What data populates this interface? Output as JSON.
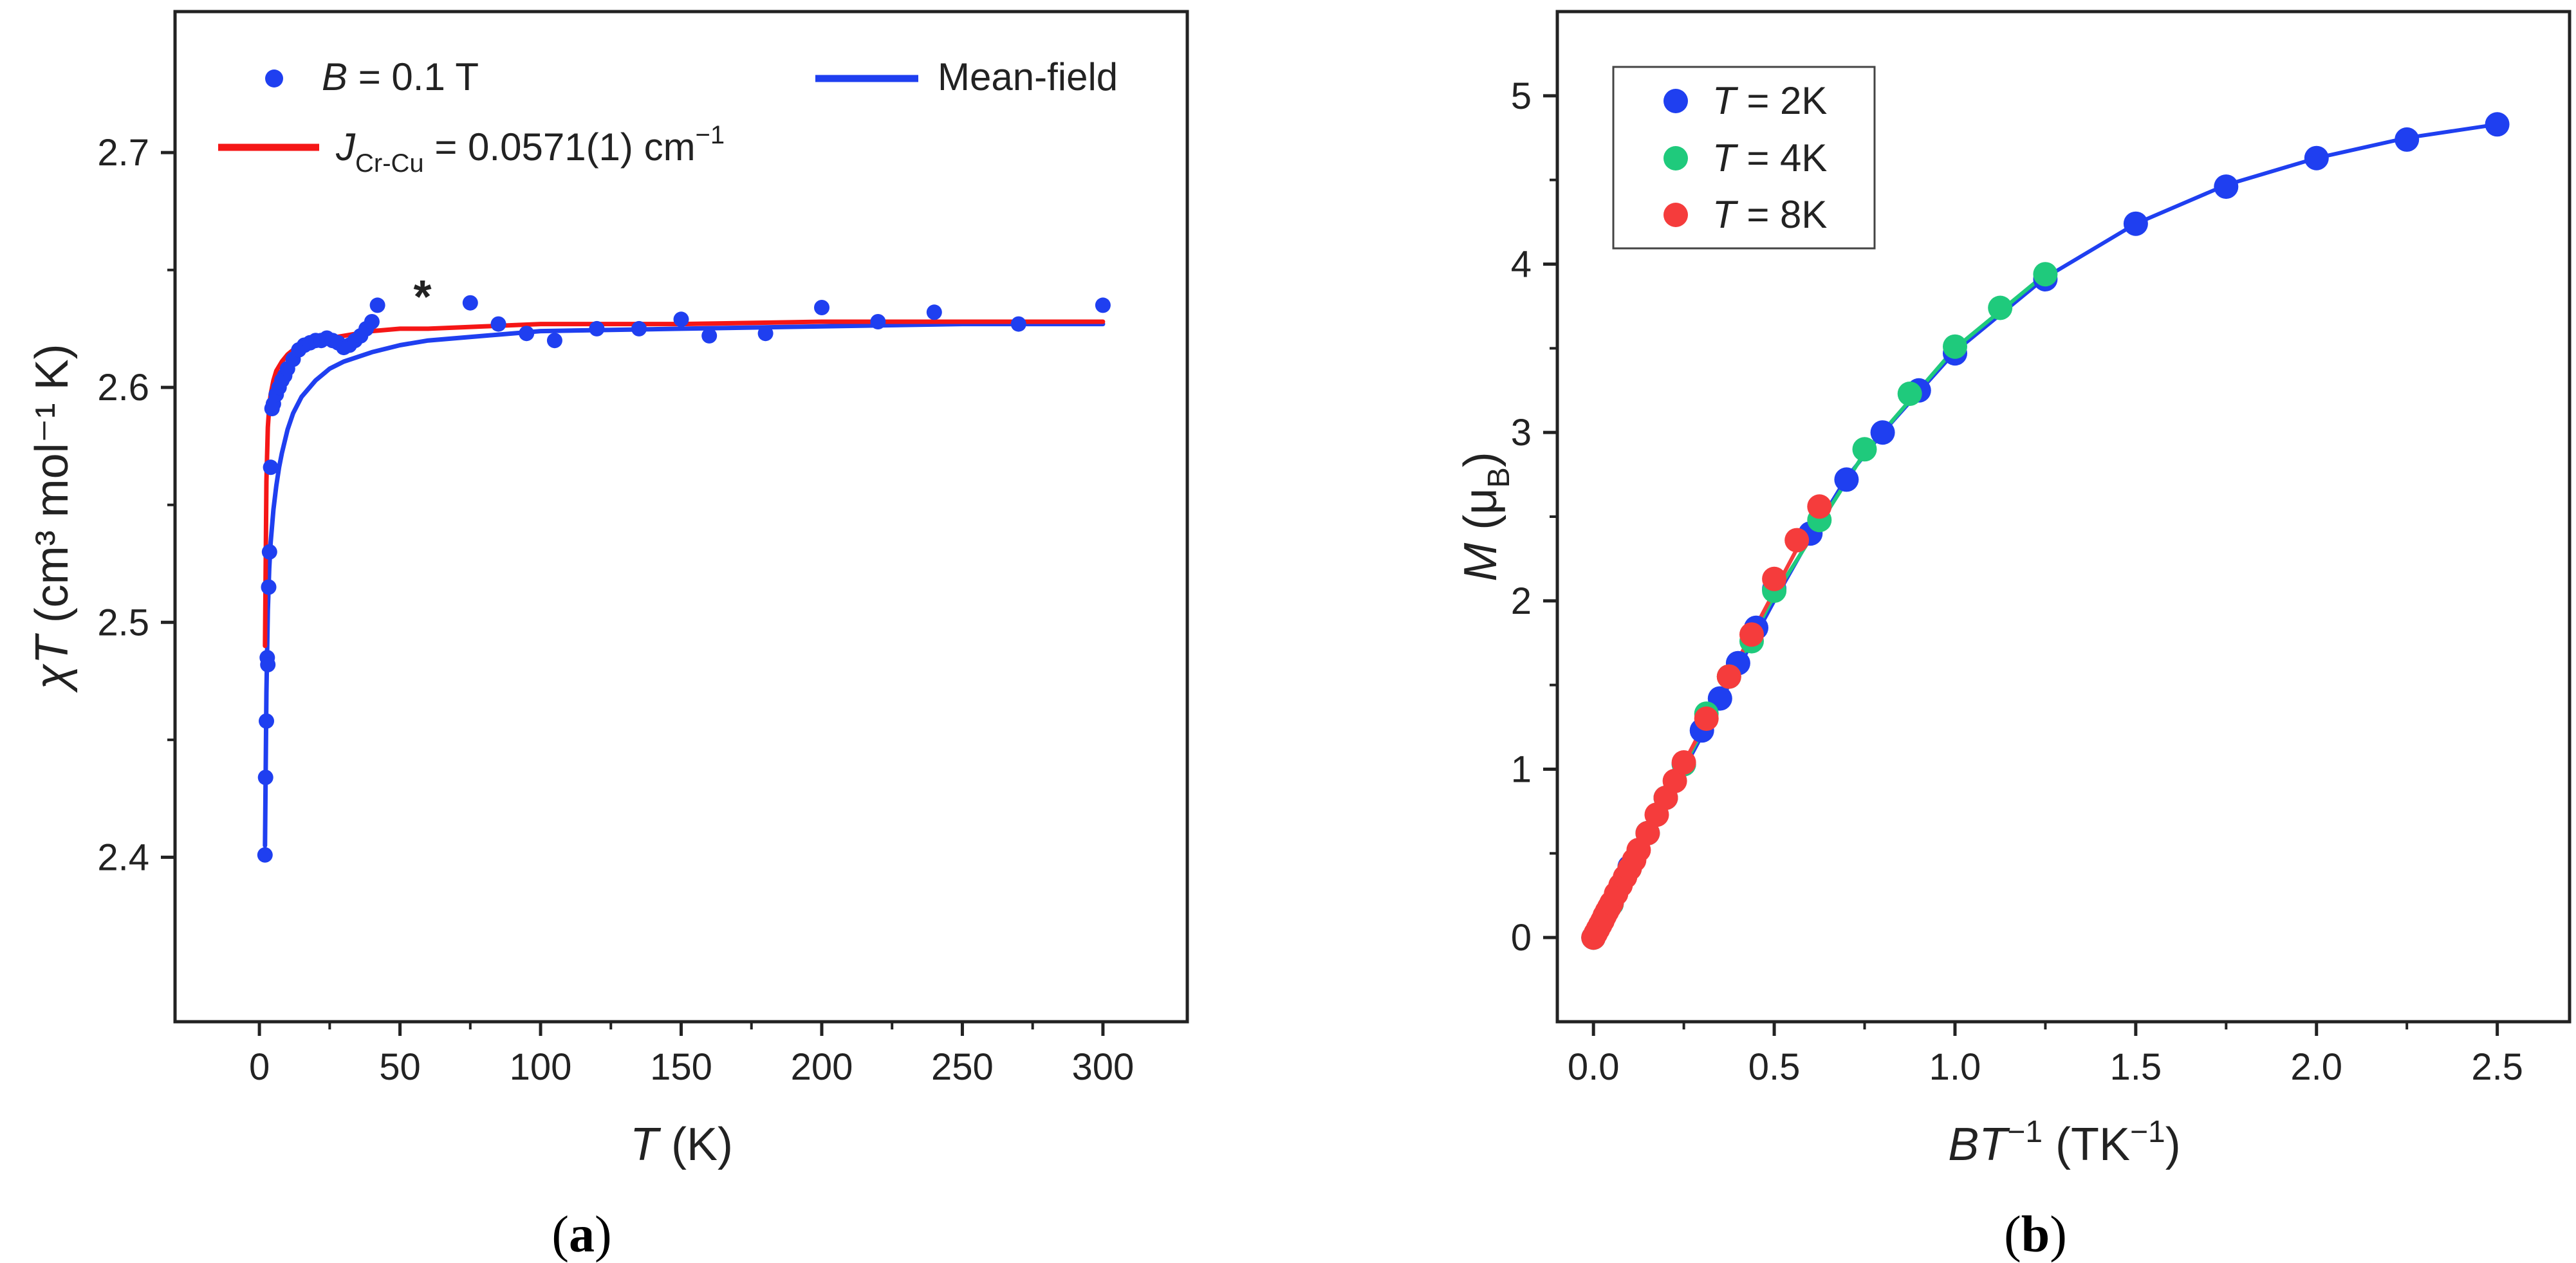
{
  "colors": {
    "blue": "#1f3ff0",
    "red": "#f51616",
    "green": "#1fca7c",
    "pointRed": "#f53c3c",
    "axis": "#222222"
  },
  "chart_data": [
    {
      "id": "a",
      "type": "scatter",
      "panel_label": "(a)",
      "panel_letter": "a",
      "xlabel": {
        "var": "T",
        "unit": " (K)"
      },
      "ylabel": {
        "pre": "χ",
        "var": "T",
        "unit": " (cm³ mol⁻¹ K)"
      },
      "xlim": [
        -30,
        330
      ],
      "ylim": [
        2.33,
        2.76
      ],
      "xticks": [
        0,
        50,
        100,
        150,
        200,
        250,
        300
      ],
      "yticks": [
        2.4,
        2.5,
        2.6,
        2.7
      ],
      "ytick_decimals": 1,
      "legend": {
        "points_label": {
          "var": "B",
          "rest": " = 0.1 T"
        },
        "mean_field_label": "Mean-field",
        "fit_label": {
          "var": "J",
          "sub": "Cr-Cu",
          "rest": " = 0.0571(1) cm",
          "sup": "−1"
        }
      },
      "annotation": {
        "text": "*",
        "x": 58,
        "y": 2.64
      },
      "series": [
        {
          "name": "B = 0.1 T",
          "kind": "points",
          "color_key": "blue",
          "x": [
            2,
            2.2,
            2.5,
            2.8,
            3,
            3.3,
            3.6,
            4,
            4.5,
            5,
            6,
            7,
            8,
            9,
            10,
            12,
            14,
            16,
            18,
            20,
            22,
            24,
            26,
            28,
            30,
            32,
            34,
            36,
            38,
            40,
            42,
            75,
            85,
            95,
            105,
            120,
            135,
            150,
            160,
            180,
            200,
            220,
            240,
            270,
            300
          ],
          "y": [
            2.401,
            2.434,
            2.458,
            2.485,
            2.482,
            2.515,
            2.53,
            2.566,
            2.591,
            2.593,
            2.597,
            2.6,
            2.603,
            2.605,
            2.608,
            2.612,
            2.616,
            2.618,
            2.619,
            2.62,
            2.62,
            2.621,
            2.62,
            2.619,
            2.617,
            2.618,
            2.62,
            2.622,
            2.625,
            2.628,
            2.635,
            2.636,
            2.627,
            2.623,
            2.62,
            2.625,
            2.625,
            2.629,
            2.622,
            2.623,
            2.634,
            2.628,
            2.632,
            2.627,
            2.635
          ]
        },
        {
          "name": "Mean-field",
          "kind": "line",
          "color_key": "blue",
          "x": [
            2,
            2.5,
            3,
            3.5,
            4,
            5,
            6,
            7,
            8,
            10,
            12,
            15,
            20,
            25,
            30,
            40,
            50,
            60,
            80,
            100,
            150,
            200,
            250,
            300
          ],
          "y": [
            2.405,
            2.47,
            2.505,
            2.523,
            2.534,
            2.548,
            2.558,
            2.566,
            2.572,
            2.582,
            2.589,
            2.596,
            2.603,
            2.608,
            2.611,
            2.615,
            2.618,
            2.62,
            2.622,
            2.624,
            2.625,
            2.626,
            2.627,
            2.627
          ]
        },
        {
          "name": "J Cr-Cu = 0.0571(1) cm-1",
          "kind": "line",
          "color_key": "red",
          "x": [
            2,
            2.5,
            3,
            3.5,
            4,
            5,
            6,
            8,
            10,
            12,
            15,
            20,
            25,
            30,
            40,
            50,
            60,
            80,
            100,
            150,
            200,
            250,
            300
          ],
          "y": [
            2.49,
            2.56,
            2.583,
            2.592,
            2.597,
            2.603,
            2.607,
            2.611,
            2.614,
            2.616,
            2.618,
            2.62,
            2.621,
            2.622,
            2.624,
            2.625,
            2.625,
            2.626,
            2.627,
            2.627,
            2.628,
            2.628,
            2.628
          ]
        }
      ]
    },
    {
      "id": "b",
      "type": "scatter",
      "panel_label": "(b)",
      "panel_letter": "b",
      "xlabel": {
        "var": "BT",
        "sup": "−1",
        "unit": " (TK",
        "unit_sup": "−1",
        "close": ")"
      },
      "ylabel": {
        "var": "M",
        "unit": " (μ",
        "sub": "B",
        "close": ")"
      },
      "xlim": [
        -0.1,
        2.7
      ],
      "ylim": [
        -0.5,
        5.5
      ],
      "xticks": [
        0.0,
        0.5,
        1.0,
        1.5,
        2.0,
        2.5
      ],
      "yticks": [
        0,
        1,
        2,
        3,
        4,
        5
      ],
      "xtick_decimals": 1,
      "ytick_decimals": 0,
      "legend": {
        "entries": [
          {
            "var": "T",
            "rest": " = 2K",
            "color_key": "blue"
          },
          {
            "var": "T",
            "rest": " = 4K",
            "color_key": "green"
          },
          {
            "var": "T",
            "rest": " = 8K",
            "color_key": "pointRed"
          }
        ]
      },
      "series": [
        {
          "name": "T = 2K fit",
          "kind": "line",
          "color_key": "blue",
          "x": [
            0,
            0.1,
            0.2,
            0.3,
            0.4,
            0.5,
            0.6,
            0.7,
            0.8,
            0.9,
            1.0,
            1.25,
            1.5,
            1.75,
            2.0,
            2.25,
            2.5
          ],
          "y": [
            0,
            0.4,
            0.8,
            1.2,
            1.6,
            2.0,
            2.38,
            2.73,
            3.0,
            3.24,
            3.48,
            3.92,
            4.24,
            4.47,
            4.63,
            4.75,
            4.83
          ]
        },
        {
          "name": "T = 4K fit",
          "kind": "line",
          "color_key": "green",
          "x": [
            0,
            0.25,
            0.5,
            0.75,
            1.0,
            1.25
          ],
          "y": [
            0,
            1.02,
            2.03,
            2.88,
            3.5,
            3.94
          ]
        },
        {
          "name": "T = 8K fit",
          "kind": "line",
          "color_key": "pointRed",
          "x": [
            0,
            0.2,
            0.4,
            0.625
          ],
          "y": [
            0,
            0.83,
            1.65,
            2.56
          ]
        },
        {
          "name": "T = 2K",
          "kind": "points",
          "color_key": "blue",
          "x": [
            0,
            0.05,
            0.1,
            0.15,
            0.2,
            0.25,
            0.3,
            0.35,
            0.4,
            0.45,
            0.5,
            0.6,
            0.7,
            0.8,
            0.9,
            1.0,
            1.25,
            1.5,
            1.75,
            2.0,
            2.25,
            2.5
          ],
          "y": [
            0,
            0.2,
            0.42,
            0.62,
            0.83,
            1.03,
            1.23,
            1.42,
            1.63,
            1.84,
            2.07,
            2.4,
            2.72,
            3.0,
            3.25,
            3.47,
            3.91,
            4.24,
            4.46,
            4.63,
            4.74,
            4.83
          ]
        },
        {
          "name": "T = 4K",
          "kind": "points",
          "color_key": "green",
          "x": [
            0,
            0.05,
            0.1,
            0.15,
            0.2,
            0.25,
            0.3125,
            0.375,
            0.4375,
            0.5,
            0.625,
            0.75,
            0.875,
            1.0,
            1.125,
            1.25
          ],
          "y": [
            0,
            0.2,
            0.41,
            0.62,
            0.83,
            1.03,
            1.33,
            1.55,
            1.76,
            2.06,
            2.48,
            2.9,
            3.23,
            3.51,
            3.74,
            3.94
          ]
        },
        {
          "name": "T = 8K",
          "kind": "points",
          "color_key": "pointRed",
          "x": [
            0,
            0.00625,
            0.0125,
            0.01875,
            0.025,
            0.03125,
            0.0375,
            0.04375,
            0.05,
            0.0625,
            0.075,
            0.0875,
            0.1,
            0.1125,
            0.125,
            0.15,
            0.175,
            0.2,
            0.225,
            0.25,
            0.3125,
            0.375,
            0.4375,
            0.5,
            0.5625,
            0.625
          ],
          "y": [
            0,
            0.025,
            0.05,
            0.075,
            0.1,
            0.13,
            0.155,
            0.18,
            0.205,
            0.26,
            0.31,
            0.36,
            0.41,
            0.46,
            0.52,
            0.62,
            0.73,
            0.83,
            0.93,
            1.04,
            1.3,
            1.55,
            1.8,
            2.13,
            2.36,
            2.56
          ]
        }
      ]
    }
  ]
}
